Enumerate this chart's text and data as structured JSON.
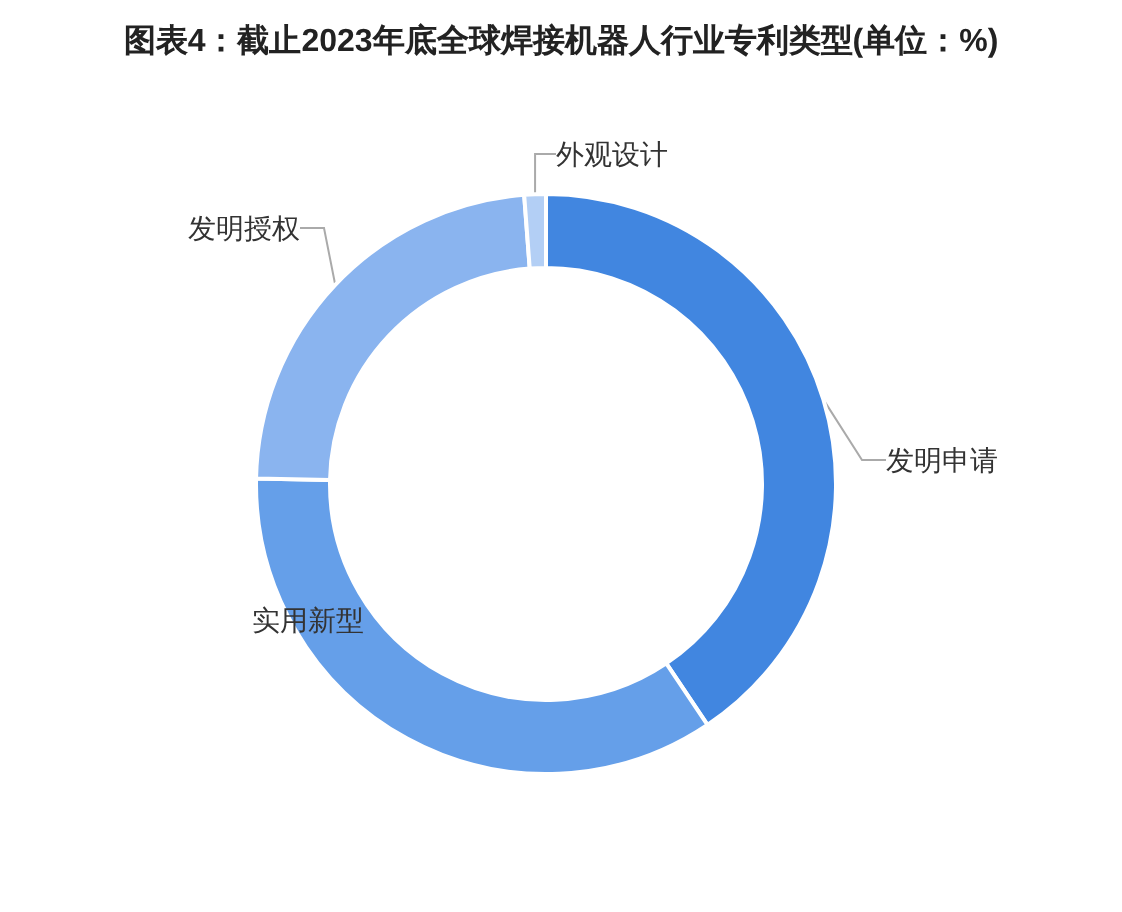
{
  "chart_data": {
    "type": "donut",
    "title": "图表4：截止2023年底全球焊接机器人行业专利类型(单位：%)",
    "categories": [
      "发明申请",
      "实用新型",
      "发明授权",
      "外观设计"
    ],
    "values": [
      40.6,
      34.7,
      23.5,
      1.2
    ],
    "colors": [
      "#4186e0",
      "#659fe9",
      "#8ab4ef",
      "#b3cff5"
    ]
  }
}
